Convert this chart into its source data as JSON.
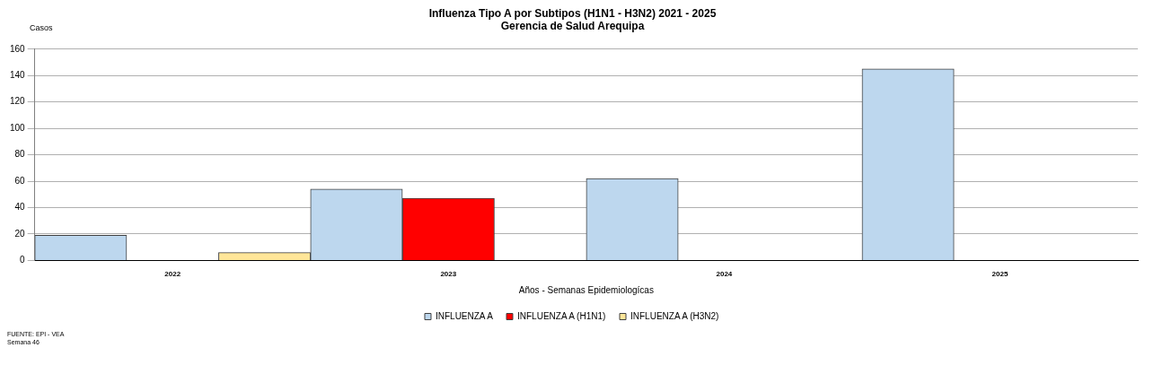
{
  "chart_data": {
    "type": "bar",
    "title": "Influenza Tipo A por Subtipos (H1N1 - H3N2) 2021 - 2025",
    "subtitle": "Gerencia de Salud Arequipa",
    "ylabel": "Casos",
    "xlabel": "Años - Semanas Epidemiologícas",
    "categories": [
      "2022",
      "2023",
      "2024",
      "2025"
    ],
    "series": [
      {
        "name": "INFLUENZA A",
        "color": "#bdd7ee",
        "values": [
          19,
          54,
          62,
          145
        ]
      },
      {
        "name": "INFLUENZA A (H1N1)",
        "color": "#ff0000",
        "values": [
          0,
          47,
          0,
          0
        ]
      },
      {
        "name": "INFLUENZA A (H3N2)",
        "color": "#ffe699",
        "values": [
          6,
          0,
          0,
          0
        ]
      }
    ],
    "ylim": [
      0,
      160
    ],
    "yticks": [
      0,
      20,
      40,
      60,
      80,
      100,
      120,
      140,
      160
    ],
    "grid": "y",
    "legend": "bottom",
    "annotations": [
      "FUENTE: EPI - VEA",
      "Semana 46"
    ]
  }
}
